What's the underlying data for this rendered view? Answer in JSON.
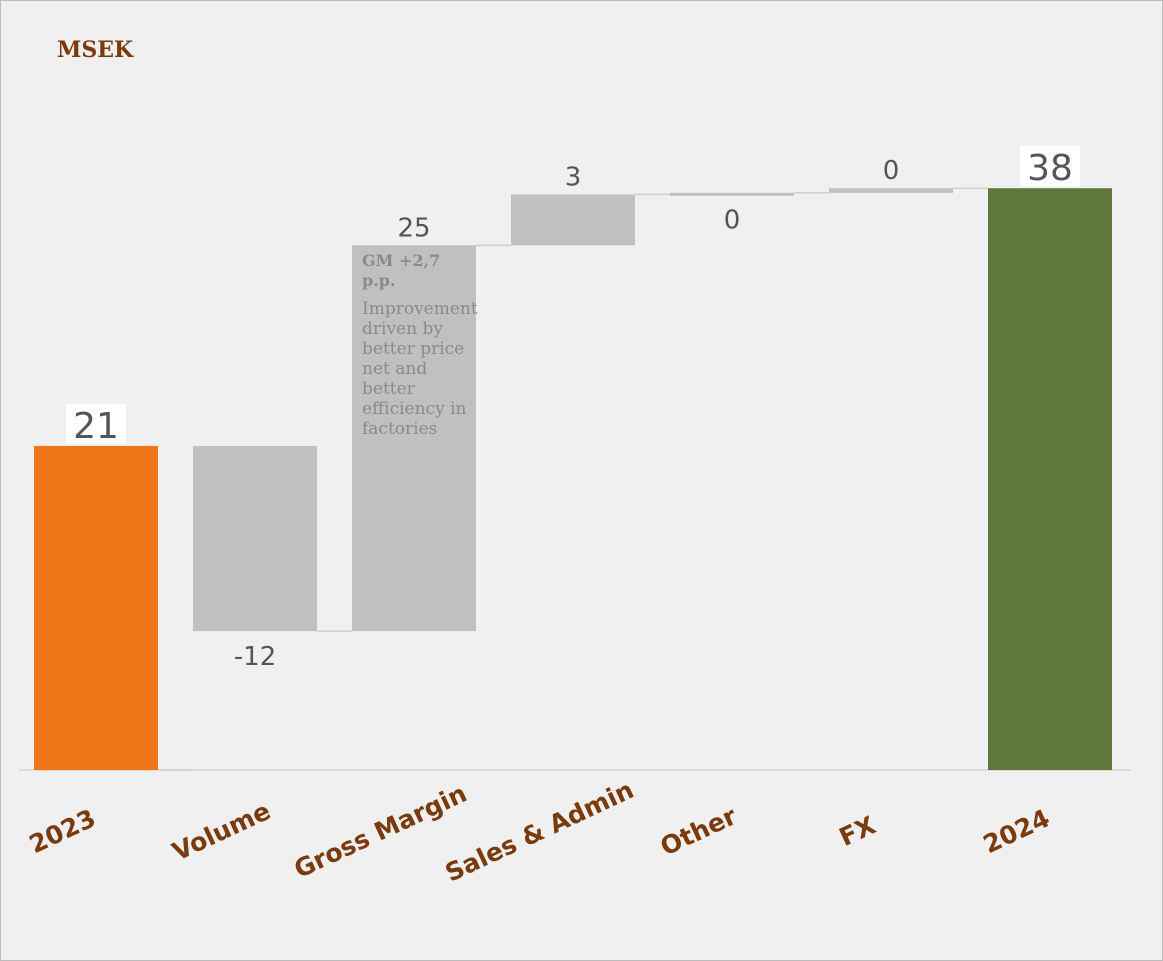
{
  "unit_label": "MSEK",
  "annotation": {
    "heading": "GM +2,7 p.p.",
    "body": "Improvement driven by better price net and better efficiency in factories"
  },
  "colors": {
    "start": "#ee7418",
    "end": "#5f7739",
    "delta": "#c0c0c0",
    "connector": "#cfcfcf",
    "baseline": "#d4d4d4",
    "value_label": "#555555",
    "category_label": "#7a3a0c"
  },
  "chart_data": {
    "type": "bar",
    "subtype": "waterfall",
    "title": "",
    "xlabel": "",
    "ylabel": "",
    "grid": false,
    "legend": "none",
    "ylim": [
      0,
      44
    ],
    "categories": [
      "2023",
      "Volume",
      "Gross Margin",
      "Sales & Admin",
      "Other",
      "FX",
      "2024"
    ],
    "bars": [
      {
        "category": "2023",
        "kind": "total",
        "base": 0,
        "top": 21,
        "label": "21"
      },
      {
        "category": "Volume",
        "kind": "delta",
        "base": 9,
        "top": 21,
        "label": "-12"
      },
      {
        "category": "Gross Margin",
        "kind": "delta",
        "base": 9,
        "top": 34,
        "label": "25"
      },
      {
        "category": "Sales & Admin",
        "kind": "delta",
        "base": 34,
        "top": 37.3,
        "label": "3"
      },
      {
        "category": "Other",
        "kind": "delta",
        "base": 37.3,
        "top": 37.4,
        "label": "0"
      },
      {
        "category": "FX",
        "kind": "delta",
        "base": 37.4,
        "top": 37.7,
        "label": "0"
      },
      {
        "category": "2024",
        "kind": "total",
        "base": 0,
        "top": 37.7,
        "label": "38"
      }
    ]
  }
}
